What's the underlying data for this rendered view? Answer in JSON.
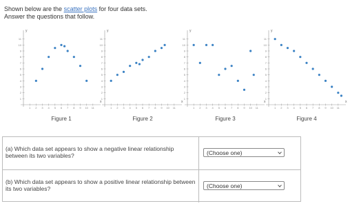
{
  "intro": {
    "text_before": "Shown below are the",
    "link": "scatter plots",
    "text_after": "for four data sets.",
    "instruction": "Answer the questions that follow."
  },
  "figures": [
    {
      "type": "scatter",
      "caption": "Figure 1",
      "x_label": "x",
      "y_label": "y",
      "color": "#3b82c4",
      "x": [
        2,
        3,
        4,
        5,
        6,
        6.5,
        7,
        8,
        9,
        10
      ],
      "y": [
        4,
        6,
        8,
        9.5,
        10,
        9.8,
        9,
        8,
        6.5,
        4
      ],
      "xlim": [
        0,
        12
      ],
      "ylim": [
        0,
        12
      ],
      "xticks": [
        1,
        2,
        3,
        4,
        5,
        6,
        7,
        8,
        9,
        10,
        11
      ],
      "yticks": [
        1,
        2,
        3,
        4,
        5,
        6,
        7,
        8,
        9,
        10,
        11
      ]
    },
    {
      "type": "scatter",
      "caption": "Figure 2",
      "x_label": "x",
      "y_label": "y",
      "color": "#3b82c4",
      "x": [
        1,
        2,
        3,
        4,
        5,
        5.5,
        6,
        7,
        8,
        9,
        9.5
      ],
      "y": [
        4,
        5,
        5.5,
        6.5,
        7,
        6.8,
        7.5,
        8,
        9,
        9.5,
        10
      ],
      "xlim": [
        0,
        12
      ],
      "ylim": [
        0,
        12
      ],
      "xticks": [
        1,
        2,
        3,
        4,
        5,
        6,
        7,
        8,
        9,
        10,
        11
      ],
      "yticks": [
        1,
        2,
        3,
        4,
        5,
        6,
        7,
        8,
        9,
        10,
        11
      ]
    },
    {
      "type": "scatter",
      "caption": "Figure 3",
      "x_label": "x",
      "y_label": "y",
      "color": "#3b82c4",
      "x": [
        1,
        2,
        3,
        4,
        5,
        6,
        7,
        8,
        9,
        10,
        10.5
      ],
      "y": [
        10,
        7,
        10,
        10,
        5,
        6,
        6.5,
        4,
        2.5,
        9,
        5
      ],
      "xlim": [
        0,
        12
      ],
      "ylim": [
        0,
        12
      ],
      "xticks": [
        1,
        2,
        3,
        4,
        5,
        6,
        7,
        8,
        9,
        10,
        11
      ],
      "yticks": [
        1,
        2,
        3,
        4,
        5,
        6,
        7,
        8,
        9,
        10,
        11
      ]
    },
    {
      "type": "scatter",
      "caption": "Figure 4",
      "x_label": "x",
      "y_label": "y",
      "color": "#3b82c4",
      "x": [
        1,
        2,
        3,
        4,
        5,
        6,
        7,
        8,
        9,
        10,
        11,
        11.5
      ],
      "y": [
        11,
        10,
        9.5,
        9,
        8,
        7,
        6,
        5,
        4,
        3,
        2,
        1.5
      ],
      "xlim": [
        0,
        12
      ],
      "ylim": [
        0,
        12
      ],
      "xticks": [
        1,
        2,
        3,
        4,
        5,
        6,
        7,
        8,
        9,
        10,
        11
      ],
      "yticks": [
        1,
        2,
        3,
        4,
        5,
        6,
        7,
        8,
        9,
        10,
        11
      ]
    }
  ],
  "questions": [
    {
      "label": "(a)",
      "text": "Which data set appears to show a negative linear relationship between its two variables?",
      "select": "(Choose one)"
    },
    {
      "label": "(b)",
      "text": "Which data set appears to show a positive linear relationship between its two variables?",
      "select": "(Choose one)"
    }
  ]
}
